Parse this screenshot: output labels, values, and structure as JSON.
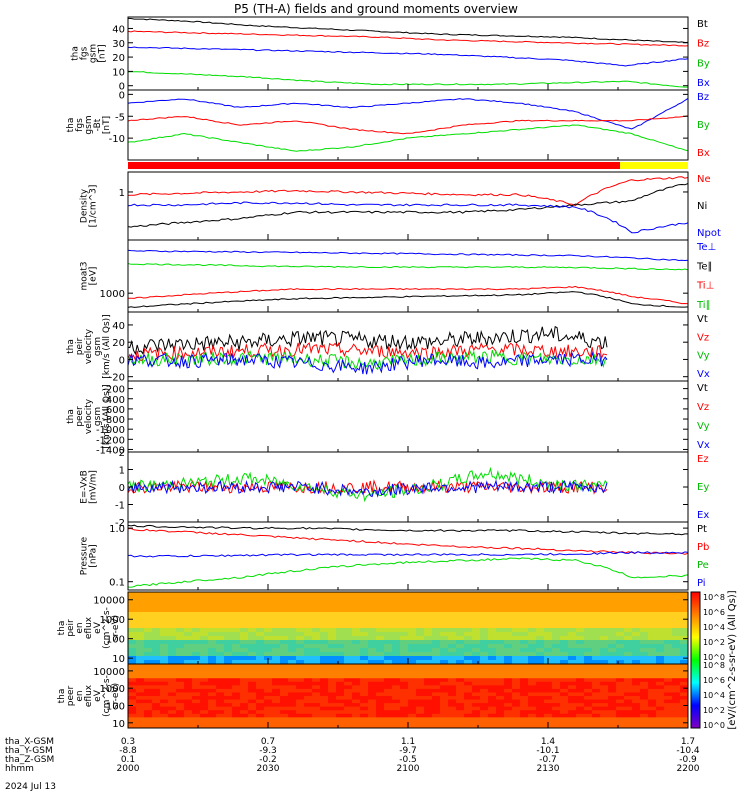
{
  "title": "P5 (TH-A) fields and ground moments overview",
  "colors": {
    "black": "#000000",
    "red": "#ff0000",
    "green": "#00dd00",
    "blue": "#0000ff",
    "yellow": "#ffff00"
  },
  "chart_data": [
    {
      "type": "line",
      "ylabel": [
        "tha",
        "fgs",
        "gsm",
        "[nT]"
      ],
      "yticks": [
        "0",
        "10",
        "20",
        "30",
        "40"
      ],
      "ylim": [
        -3,
        48
      ],
      "ytick_values": [
        0,
        10,
        20,
        30,
        40
      ],
      "series": [
        {
          "name": "Bt",
          "color": "#000000",
          "values": [
            47,
            45,
            42,
            40,
            38,
            36,
            35,
            34,
            32,
            30
          ]
        },
        {
          "name": "Bz",
          "color": "#ff0000",
          "values": [
            38,
            37,
            36,
            35,
            34,
            32,
            31,
            30,
            29,
            28
          ]
        },
        {
          "name": "By",
          "color": "#00dd00",
          "values": [
            10,
            8,
            6,
            3,
            1,
            1,
            1,
            2,
            3,
            -1
          ]
        },
        {
          "name": "Bx",
          "color": "#0000ff",
          "values": [
            27,
            26,
            25,
            24,
            23,
            22,
            20,
            18,
            14,
            19
          ]
        }
      ]
    },
    {
      "type": "line",
      "ylabel": [
        "tha",
        "fgs",
        "gsm",
        "-Bt",
        "[nT]"
      ],
      "yticks": [
        "0",
        "-5",
        "-10"
      ],
      "ylim": [
        -15,
        1
      ],
      "ytick_values": [
        0,
        -5,
        -10
      ],
      "series": [
        {
          "name": "Bz",
          "color": "#0000ff",
          "values": [
            -2,
            -1,
            -3,
            -2,
            -3,
            -2,
            -1,
            -2,
            -4,
            -8,
            -1
          ]
        },
        {
          "name": "By",
          "color": "#00dd00",
          "values": [
            -11,
            -9,
            -11,
            -13,
            -12,
            -10,
            -9,
            -8,
            -7,
            -9,
            -13
          ]
        },
        {
          "name": "Bx",
          "color": "#ff0000",
          "values": [
            -6,
            -5,
            -7,
            -6,
            -8,
            -9,
            -7,
            -6,
            -6,
            -6,
            -5
          ]
        }
      ]
    },
    {
      "type": "line",
      "ylabel": [
        "Density",
        "[1/cm^3]"
      ],
      "yticks": [
        "1"
      ],
      "ylog": true,
      "ylim": [
        0.15,
        2.2
      ],
      "ytick_values": [
        1
      ],
      "series": [
        {
          "name": "Ne",
          "color": "#ff0000",
          "values": [
            0.9,
            0.95,
            1.0,
            1.05,
            1.0,
            0.95,
            0.9,
            0.9,
            0.6,
            1.6,
            1.8
          ]
        },
        {
          "name": "Ni",
          "color": "#000000",
          "values": [
            0.25,
            0.3,
            0.35,
            0.45,
            0.45,
            0.45,
            0.45,
            0.5,
            0.6,
            0.7,
            1.4
          ]
        },
        {
          "name": "Npot",
          "color": "#0000ff",
          "values": [
            0.6,
            0.6,
            0.65,
            0.65,
            0.6,
            0.6,
            0.6,
            0.6,
            0.55,
            0.2,
            0.3
          ]
        }
      ]
    },
    {
      "type": "line",
      "ylabel": [
        "moat3",
        "[eV]"
      ],
      "yticks": [
        "1000"
      ],
      "ylog": true,
      "ylim": [
        300,
        30000
      ],
      "ytick_values": [
        1000
      ],
      "series": [
        {
          "name": "Te⊥",
          "color": "#0000ff",
          "values": [
            15000,
            14500,
            14000,
            13500,
            13000,
            12500,
            12000,
            11500,
            11000,
            9500,
            8000
          ]
        },
        {
          "name": "Te∥",
          "color": "#000000",
          "values": [
            400,
            500,
            600,
            700,
            750,
            800,
            850,
            900,
            1100,
            500,
            400
          ]
        },
        {
          "name": "Ti⊥",
          "color": "#ff0000",
          "values": [
            700,
            900,
            1100,
            1300,
            1300,
            1300,
            1300,
            1300,
            1500,
            800,
            500
          ]
        },
        {
          "name": "Ti∥",
          "color": "#00dd00",
          "values": [
            6500,
            6200,
            5800,
            5500,
            5400,
            5300,
            5300,
            5300,
            5200,
            4800,
            4500
          ]
        }
      ]
    },
    {
      "type": "line",
      "ylabel": [
        "tha",
        "peir",
        "velocity",
        "gsm",
        "[km/s (All Qs)]"
      ],
      "yticks": [
        "-20",
        "0",
        "20",
        "40"
      ],
      "ylim": [
        -25,
        55
      ],
      "ytick_values": [
        -20,
        0,
        20,
        40
      ],
      "series": [
        {
          "name": "Vt",
          "color": "#000000",
          "values": [
            15,
            18,
            20,
            25,
            22,
            20,
            25,
            30,
            20
          ]
        },
        {
          "name": "Vz",
          "color": "#ff0000",
          "values": [
            5,
            8,
            10,
            12,
            10,
            8,
            12,
            10,
            8
          ]
        },
        {
          "name": "Vy",
          "color": "#00dd00",
          "values": [
            0,
            0,
            2,
            0,
            -5,
            0,
            3,
            0,
            0
          ]
        },
        {
          "name": "Vx",
          "color": "#0000ff",
          "values": [
            0,
            -2,
            0,
            -5,
            -10,
            0,
            -5,
            0,
            0
          ]
        }
      ]
    },
    {
      "type": "line",
      "ylabel": [
        "tha",
        "peer",
        "velocity",
        "gsm",
        "[km/s (All Qs)]"
      ],
      "yticks": [
        "-200",
        "-400",
        "-600",
        "-800",
        "-1000",
        "-1200",
        "-1400"
      ],
      "ylim": [
        -1450,
        -50
      ],
      "ytick_values": [
        -200,
        -400,
        -600,
        -800,
        -1000,
        -1200,
        -1400
      ],
      "series": [
        {
          "name": "Vt",
          "color": "#000000",
          "values": []
        },
        {
          "name": "Vz",
          "color": "#ff0000",
          "values": []
        },
        {
          "name": "Vy",
          "color": "#00dd00",
          "values": []
        },
        {
          "name": "Vx",
          "color": "#0000ff",
          "values": []
        }
      ]
    },
    {
      "type": "line",
      "ylabel": [
        "E=-VxB",
        "[mV/m]"
      ],
      "yticks": [
        "-2",
        "-1",
        "0",
        "1",
        "2"
      ],
      "ylim": [
        -2,
        2
      ],
      "ytick_values": [
        -2,
        -1,
        0,
        1,
        2
      ],
      "series": [
        {
          "name": "Ez",
          "color": "#ff0000",
          "values": [
            0,
            0,
            0,
            0,
            0,
            0,
            0,
            0,
            0
          ]
        },
        {
          "name": "Ey",
          "color": "#00dd00",
          "values": [
            0,
            0.2,
            0.5,
            0,
            -0.5,
            0,
            0.8,
            0.2,
            0
          ]
        },
        {
          "name": "Ex",
          "color": "#0000ff",
          "values": [
            0,
            0,
            0,
            0,
            -0.3,
            0,
            0,
            0,
            0
          ]
        }
      ]
    },
    {
      "type": "line",
      "ylabel": [
        "Pressure",
        "[nPa]"
      ],
      "yticks": [
        "0.1",
        "1.0"
      ],
      "ylog": true,
      "ylim": [
        0.07,
        1.3
      ],
      "ytick_values": [
        0.1,
        1.0
      ],
      "series": [
        {
          "name": "Pt",
          "color": "#000000",
          "values": [
            1.1,
            1.05,
            1.0,
            1.0,
            0.95,
            0.9,
            0.9,
            0.9,
            0.85,
            0.8,
            0.78
          ]
        },
        {
          "name": "Pb",
          "color": "#ff0000",
          "values": [
            0.95,
            0.85,
            0.75,
            0.65,
            0.58,
            0.5,
            0.45,
            0.42,
            0.38,
            0.35,
            0.33
          ]
        },
        {
          "name": "Pe",
          "color": "#00dd00",
          "values": [
            0.08,
            0.1,
            0.12,
            0.16,
            0.2,
            0.23,
            0.25,
            0.27,
            0.25,
            0.12,
            0.13
          ]
        },
        {
          "name": "Pi",
          "color": "#0000ff",
          "values": [
            0.3,
            0.3,
            0.31,
            0.32,
            0.32,
            0.32,
            0.32,
            0.32,
            0.33,
            0.35,
            0.35
          ]
        }
      ]
    },
    {
      "type": "heatmap",
      "ylabel": [
        "tha",
        "peir",
        "en",
        "eflux",
        "eV",
        "(cm^2-s-",
        "sr-eV)"
      ],
      "yticks": [
        "10",
        "100",
        "1000",
        "10000"
      ],
      "ylog": true,
      "ylim": [
        5,
        25000
      ],
      "ytick_values": [
        10,
        100,
        1000,
        10000
      ]
    },
    {
      "type": "heatmap",
      "ylabel": [
        "tha",
        "peer",
        "en",
        "eflux",
        "eV",
        "(cm^2-s-",
        "sr-eV)"
      ],
      "yticks": [
        "10",
        "100",
        "1000",
        "10000"
      ],
      "ylog": true,
      "ylim": [
        5,
        25000
      ],
      "ytick_values": [
        10,
        100,
        1000,
        10000
      ]
    }
  ],
  "colorbar": {
    "label": "[eV/(cm^2-s-sr-eV) (All Qs)]",
    "ticks": [
      "10^8",
      "10^6",
      "10^4",
      "10^2",
      "10^0"
    ]
  },
  "xaxis": {
    "rows": [
      {
        "label": "tha_X-GSM",
        "values": [
          "0.3",
          "0.7",
          "1.1",
          "1.4",
          "1.7"
        ]
      },
      {
        "label": "tha_Y-GSM",
        "values": [
          "-8.8",
          "-9.3",
          "-9.7",
          "-10.1",
          "-10.4"
        ]
      },
      {
        "label": "tha_Z-GSM",
        "values": [
          "0.1",
          "-0.2",
          "-0.5",
          "-0.7",
          "-0.9"
        ]
      },
      {
        "label": "hhmm",
        "values": [
          "2000",
          "2030",
          "2100",
          "2130",
          "2200"
        ]
      }
    ],
    "date": "2024 Jul 13"
  }
}
